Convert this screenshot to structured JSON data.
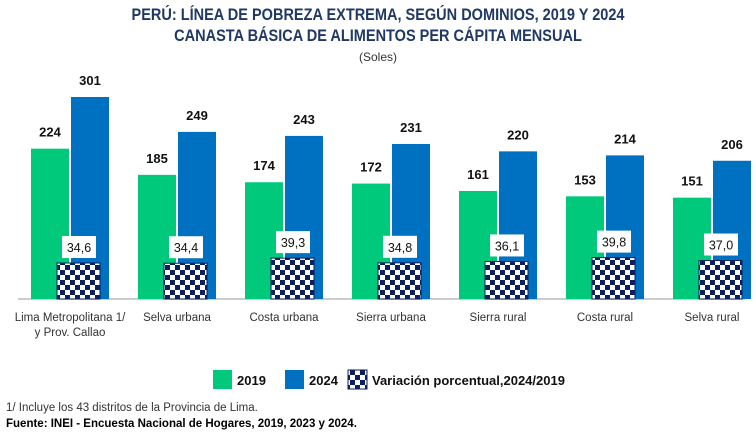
{
  "chart_data": {
    "type": "bar",
    "title": "PERÚ: LÍNEA DE POBREZA EXTREMA, SEGÚN DOMINIOS, 2019 Y 2024",
    "subtitle": "CANASTA BÁSICA DE ALIMENTOS PER CÁPITA MENSUAL",
    "unit": "(Soles)",
    "categories": [
      [
        "Lima Metropolitana 1/",
        "y Prov. Callao"
      ],
      [
        "Selva urbana"
      ],
      [
        "Costa urbana"
      ],
      [
        "Sierra urbana"
      ],
      [
        "Sierra rural"
      ],
      [
        "Costa rural"
      ],
      [
        "Selva rural"
      ]
    ],
    "series": [
      {
        "name": "2019",
        "color": "#00c97b",
        "values": [
          224,
          185,
          174,
          172,
          161,
          153,
          151
        ]
      },
      {
        "name": "2024",
        "color": "#0070c0",
        "values": [
          301,
          249,
          243,
          231,
          220,
          214,
          206
        ]
      },
      {
        "name": "Variación porcentual,2024/2019",
        "color": "#0d1f5c",
        "pattern": "checkered",
        "values": [
          34.6,
          34.4,
          39.3,
          34.8,
          36.1,
          39.8,
          37.0
        ]
      }
    ],
    "variation_labels": [
      "34,6",
      "34,4",
      "39,3",
      "34,8",
      "36,1",
      "39,8",
      "37,0"
    ],
    "legend_position": "bottom",
    "grid": false
  },
  "notes": {
    "footnote": "1/ Incluye los 43 distritos de la Provincia de Lima.",
    "source": "Fuente: INEI - Encuesta Nacional de Hogares, 2019, 2023 y 2024."
  }
}
